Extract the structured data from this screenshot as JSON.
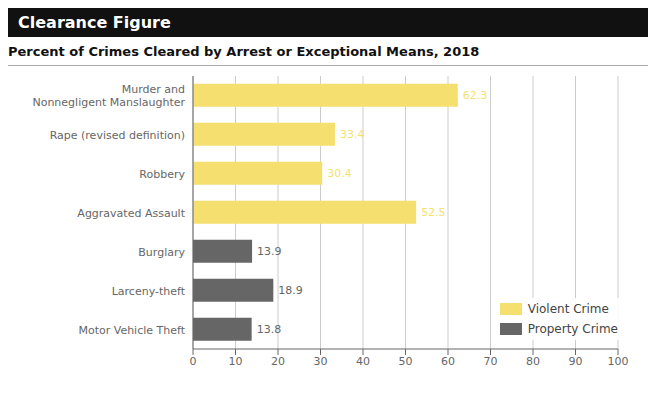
{
  "chart_data": {
    "type": "bar",
    "title": "Clearance Figure",
    "subtitle": "Percent of Crimes Cleared by Arrest or Exceptional Means, 2018",
    "orientation": "horizontal",
    "categories": [
      "Murder and\nNonnegligent Manslaughter",
      "Rape (revised definition)",
      "Robbery",
      "Aggravated Assault",
      "Burglary",
      "Larceny-theft",
      "Motor Vehicle Theft"
    ],
    "series": [
      {
        "name": "Violent Crime",
        "color": "#F5DF6E",
        "values": [
          62.3,
          33.4,
          30.4,
          52.5,
          null,
          null,
          null
        ]
      },
      {
        "name": "Property Crime",
        "color": "#666666",
        "values": [
          null,
          null,
          null,
          null,
          13.9,
          18.9,
          13.8
        ]
      }
    ],
    "xlim": [
      0,
      100
    ],
    "xticks": [
      0,
      10,
      20,
      30,
      40,
      50,
      60,
      70,
      80,
      90,
      100
    ],
    "grid": true,
    "data_labels": true,
    "legend": "lower right"
  }
}
